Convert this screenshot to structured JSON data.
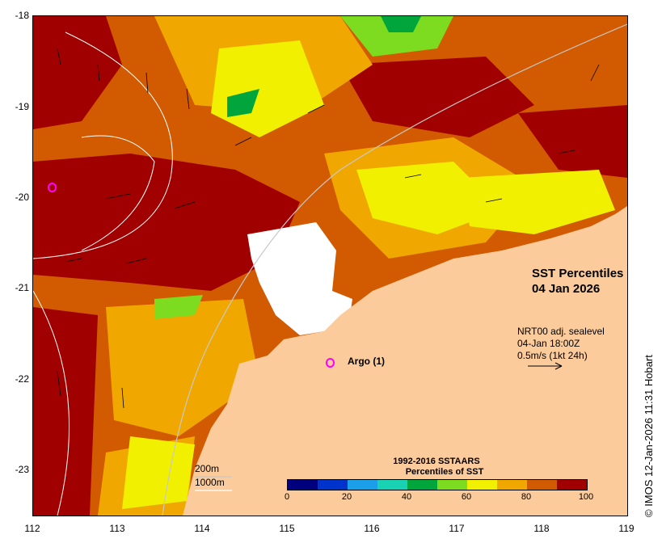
{
  "map": {
    "title_line1": "SST Percentiles",
    "title_line2": "04 Jan 2026",
    "vector_info": {
      "line1": "NRT00 adj. sealevel",
      "line2": "04-Jan 18:00Z",
      "line3": "0.5m/s (1kt 24h)"
    },
    "argo_label": "Argo (1)",
    "depth_contours": {
      "label_200": "200m",
      "label_1000": "1000m"
    },
    "y_axis_ticks": [
      "-18",
      "-19",
      "-20",
      "-21",
      "-22",
      "-23"
    ],
    "x_axis_ticks": [
      "112",
      "113",
      "114",
      "115",
      "116",
      "117",
      "118",
      "119"
    ],
    "legend": {
      "title_line1": "1992-2016 SSTAARS",
      "title_line2": "Percentiles of SST",
      "ticks": [
        "0",
        "20",
        "40",
        "60",
        "80",
        "100"
      ],
      "colors": [
        "#00007f",
        "#0033cc",
        "#1a9fe8",
        "#19d2b4",
        "#00a53c",
        "#7ddc1f",
        "#f0f000",
        "#f0a800",
        "#d25a00",
        "#a00000"
      ]
    },
    "credit": "© IMOS 12-Jan-2026 11:31 Hobart",
    "colors": {
      "land": "#fbcb9b",
      "cloud": "#ffffff",
      "contour": "#c8c8c8"
    }
  }
}
